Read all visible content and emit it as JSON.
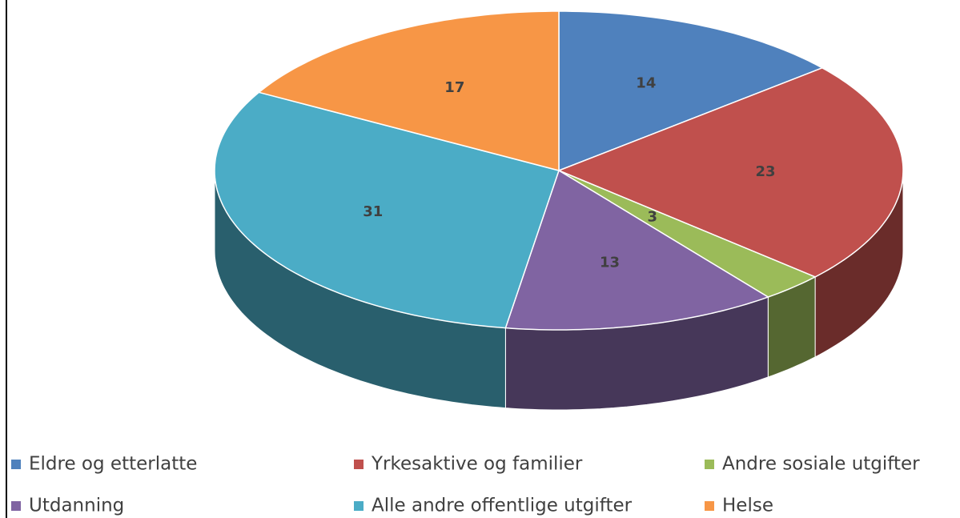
{
  "chart_data": {
    "type": "pie3d",
    "categories": [
      "Eldre og etterlatte",
      "Yrkesaktive og familier",
      "Andre sosiale utgifter",
      "Utdanning",
      "Alle andre offentlige utgifter",
      "Helse"
    ],
    "values": [
      14,
      23,
      3,
      13,
      31,
      17
    ],
    "colors": [
      "#4f81bd",
      "#c0504d",
      "#9bbb59",
      "#8064a2",
      "#4bacc6",
      "#f79646"
    ]
  }
}
